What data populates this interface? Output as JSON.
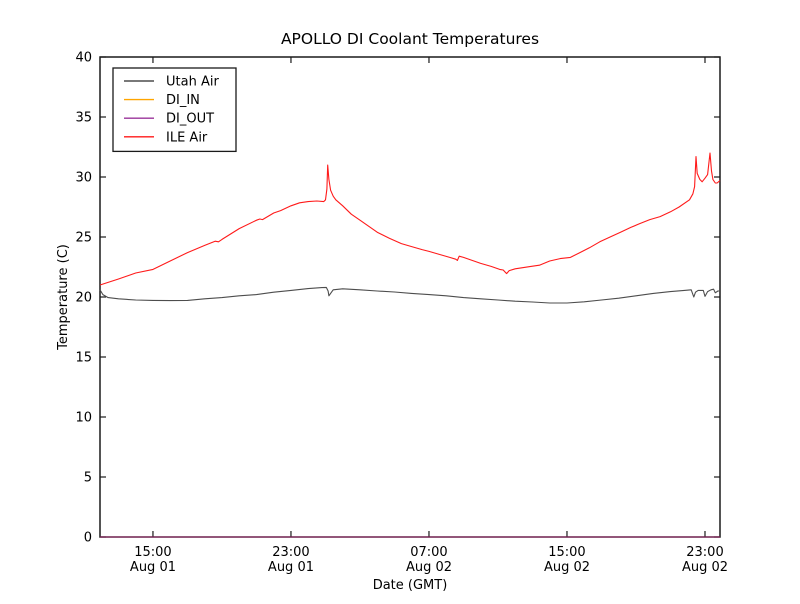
{
  "figure": {
    "background": "#ffffff",
    "frame_color": "#1a1a1a"
  },
  "chart_data": {
    "type": "line",
    "title": "APOLLO DI Coolant Temperatures",
    "xlabel": "Date (GMT)",
    "ylabel": "Temperature (C)",
    "grid": false,
    "legend_position": "upper-left",
    "ylim": [
      0,
      40
    ],
    "yticks": [
      0,
      5,
      10,
      15,
      20,
      25,
      30,
      35,
      40
    ],
    "xlim_hours": [
      11.93,
      47.87
    ],
    "xticks": [
      {
        "hours": 15,
        "time": "15:00",
        "date": "Aug 01"
      },
      {
        "hours": 23,
        "time": "23:00",
        "date": "Aug 01"
      },
      {
        "hours": 31,
        "time": "07:00",
        "date": "Aug 02"
      },
      {
        "hours": 39,
        "time": "15:00",
        "date": "Aug 02"
      },
      {
        "hours": 47,
        "time": "23:00",
        "date": "Aug 02"
      }
    ],
    "series": [
      {
        "name": "Utah Air",
        "color": "#4d4d4d",
        "opacity": 1,
        "points": [
          [
            11.93,
            20.6
          ],
          [
            12.1,
            20.2
          ],
          [
            12.4,
            19.95
          ],
          [
            13,
            19.85
          ],
          [
            14,
            19.75
          ],
          [
            15,
            19.72
          ],
          [
            16,
            19.7
          ],
          [
            17,
            19.72
          ],
          [
            18,
            19.85
          ],
          [
            19,
            19.95
          ],
          [
            20,
            20.1
          ],
          [
            21,
            20.2
          ],
          [
            22,
            20.4
          ],
          [
            23,
            20.55
          ],
          [
            24,
            20.7
          ],
          [
            24.8,
            20.78
          ],
          [
            25.05,
            20.8
          ],
          [
            25.15,
            20.5
          ],
          [
            25.2,
            20.1
          ],
          [
            25.3,
            20.3
          ],
          [
            25.45,
            20.6
          ],
          [
            26,
            20.68
          ],
          [
            27,
            20.6
          ],
          [
            28,
            20.5
          ],
          [
            29,
            20.42
          ],
          [
            30,
            20.3
          ],
          [
            31,
            20.2
          ],
          [
            32,
            20.1
          ],
          [
            33,
            19.95
          ],
          [
            34,
            19.85
          ],
          [
            35,
            19.75
          ],
          [
            36,
            19.65
          ],
          [
            37,
            19.58
          ],
          [
            38,
            19.5
          ],
          [
            39,
            19.5
          ],
          [
            40,
            19.6
          ],
          [
            41,
            19.75
          ],
          [
            42,
            19.9
          ],
          [
            43,
            20.1
          ],
          [
            44,
            20.3
          ],
          [
            45,
            20.45
          ],
          [
            45.8,
            20.55
          ],
          [
            46.2,
            20.6
          ],
          [
            46.35,
            20.0
          ],
          [
            46.45,
            20.4
          ],
          [
            46.6,
            20.55
          ],
          [
            46.9,
            20.55
          ],
          [
            47.0,
            20.05
          ],
          [
            47.15,
            20.45
          ],
          [
            47.35,
            20.6
          ],
          [
            47.5,
            20.65
          ],
          [
            47.6,
            20.35
          ],
          [
            47.75,
            20.5
          ],
          [
            47.87,
            20.5
          ]
        ]
      },
      {
        "name": "DI_IN",
        "color": "#ffa500",
        "opacity": 1,
        "points": [
          [
            11.93,
            0
          ],
          [
            47.87,
            0
          ]
        ]
      },
      {
        "name": "DI_OUT",
        "color": "#800080",
        "opacity": 0.8,
        "points": [
          [
            11.93,
            0
          ],
          [
            47.87,
            0
          ]
        ]
      },
      {
        "name": "ILE Air",
        "color": "#ff1a1a",
        "opacity": 1,
        "points": [
          [
            11.93,
            21.0
          ],
          [
            13,
            21.5
          ],
          [
            14,
            22.0
          ],
          [
            15,
            22.3
          ],
          [
            16,
            23.0
          ],
          [
            17,
            23.7
          ],
          [
            18,
            24.3
          ],
          [
            18.6,
            24.65
          ],
          [
            18.8,
            24.6
          ],
          [
            19,
            24.8
          ],
          [
            20,
            25.7
          ],
          [
            21,
            26.4
          ],
          [
            21.2,
            26.5
          ],
          [
            21.35,
            26.45
          ],
          [
            22,
            27.0
          ],
          [
            22.4,
            27.2
          ],
          [
            23,
            27.6
          ],
          [
            23.5,
            27.85
          ],
          [
            24,
            27.95
          ],
          [
            24.5,
            28.0
          ],
          [
            24.9,
            27.95
          ],
          [
            25.0,
            28.1
          ],
          [
            25.08,
            29.0
          ],
          [
            25.13,
            31.0
          ],
          [
            25.2,
            29.8
          ],
          [
            25.3,
            28.9
          ],
          [
            25.45,
            28.4
          ],
          [
            25.6,
            28.1
          ],
          [
            26,
            27.6
          ],
          [
            26.5,
            26.9
          ],
          [
            27,
            26.4
          ],
          [
            27.5,
            25.9
          ],
          [
            28,
            25.4
          ],
          [
            28.7,
            24.9
          ],
          [
            29.4,
            24.45
          ],
          [
            30,
            24.2
          ],
          [
            30.6,
            23.95
          ],
          [
            31,
            23.8
          ],
          [
            31.6,
            23.55
          ],
          [
            32.2,
            23.3
          ],
          [
            32.55,
            23.15
          ],
          [
            32.65,
            23.05
          ],
          [
            32.75,
            23.4
          ],
          [
            33,
            23.3
          ],
          [
            33.5,
            23.05
          ],
          [
            34,
            22.8
          ],
          [
            34.6,
            22.55
          ],
          [
            35.1,
            22.3
          ],
          [
            35.3,
            22.25
          ],
          [
            35.5,
            21.95
          ],
          [
            35.65,
            22.2
          ],
          [
            36,
            22.35
          ],
          [
            36.9,
            22.55
          ],
          [
            37.4,
            22.65
          ],
          [
            38,
            23.0
          ],
          [
            38.6,
            23.2
          ],
          [
            39.2,
            23.3
          ],
          [
            39.75,
            23.7
          ],
          [
            40.3,
            24.1
          ],
          [
            40.9,
            24.6
          ],
          [
            41.5,
            25.0
          ],
          [
            42.1,
            25.4
          ],
          [
            42.7,
            25.8
          ],
          [
            43.2,
            26.1
          ],
          [
            43.8,
            26.45
          ],
          [
            44.4,
            26.7
          ],
          [
            45,
            27.1
          ],
          [
            45.5,
            27.5
          ],
          [
            46.1,
            28.1
          ],
          [
            46.3,
            28.6
          ],
          [
            46.4,
            29.2
          ],
          [
            46.48,
            31.7
          ],
          [
            46.55,
            30.3
          ],
          [
            46.7,
            29.8
          ],
          [
            46.83,
            29.6
          ],
          [
            47.0,
            29.9
          ],
          [
            47.15,
            30.2
          ],
          [
            47.29,
            32.0
          ],
          [
            47.38,
            30.5
          ],
          [
            47.46,
            29.8
          ],
          [
            47.6,
            29.5
          ],
          [
            47.7,
            29.5
          ],
          [
            47.87,
            29.7
          ]
        ]
      }
    ]
  }
}
